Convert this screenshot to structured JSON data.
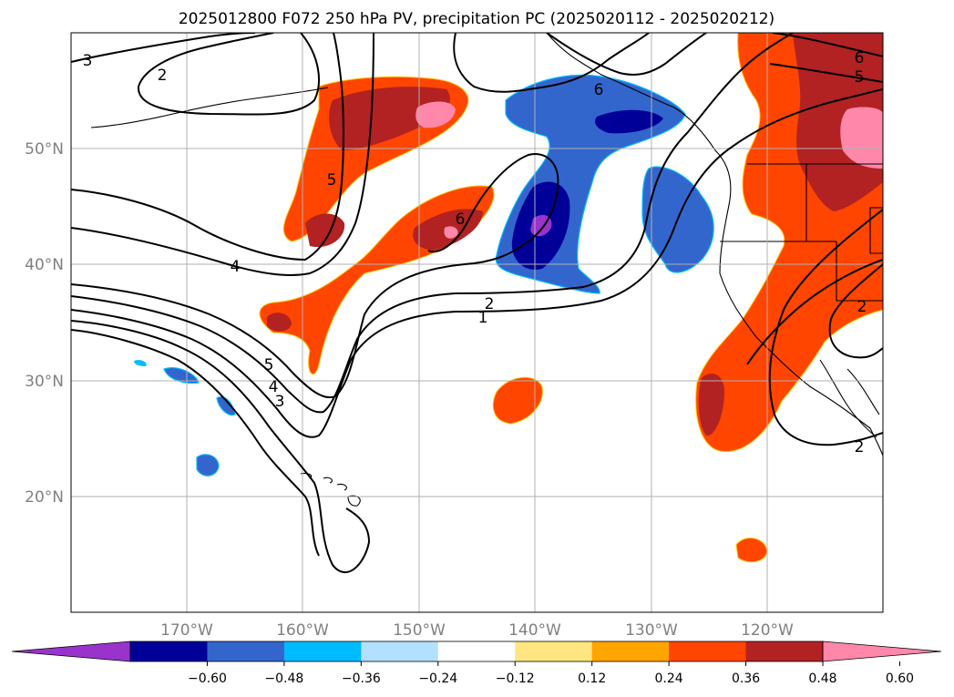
{
  "title": "2025012800 F072 250 hPa PV, precipitation PC (2025020112 - 2025020212)",
  "lat_labels": [
    "50°N",
    "40°N",
    "30°N",
    "20°N"
  ],
  "lon_labels": [
    "170°W",
    "160°W",
    "150°W",
    "140°W",
    "130°W",
    "120°W"
  ],
  "colorbar": {
    "colors": [
      "#9933cc",
      "#000099",
      "#3366cc",
      "#00bbff",
      "#b3e0ff",
      "#ffffff",
      "#ffe680",
      "#ffa500",
      "#ff4500",
      "#b22222",
      "#ff88aa"
    ],
    "tick_labels": [
      "−0.60",
      "−0.48",
      "−0.36",
      "−0.24",
      "−0.12",
      "0.12",
      "0.24",
      "0.36",
      "0.48",
      "0.60"
    ]
  },
  "contour_labels": [
    "3",
    "2",
    "5",
    "6",
    "4",
    "6",
    "2",
    "1",
    "5",
    "4",
    "3",
    "6",
    "5",
    "2",
    "2"
  ],
  "colors": {
    "positive_pc": "#ff4500",
    "strong_positive_pc": "#b22222",
    "max_positive_pc": "#ff88aa",
    "negative_pc": "#3366cc",
    "strong_negative_pc": "#000099",
    "max_negative_pc": "#9933cc"
  }
}
